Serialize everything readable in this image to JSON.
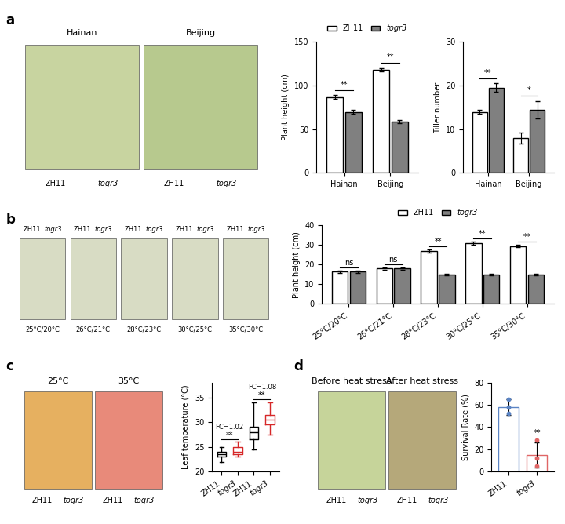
{
  "panel_labels": [
    "a",
    "b",
    "c",
    "d"
  ],
  "photos": {
    "a": [
      {
        "title": "Hainan",
        "labels": [
          "ZH11",
          "togr3"
        ]
      },
      {
        "title": "Beijing",
        "labels": [
          "ZH11",
          "togr3"
        ]
      }
    ],
    "b": [
      {
        "caption": "25°C/20°C",
        "labels": [
          "ZH11",
          "togr3"
        ]
      },
      {
        "caption": "26°C/21°C",
        "labels": [
          "ZH11",
          "togr3"
        ]
      },
      {
        "caption": "28°C/23°C",
        "labels": [
          "ZH11",
          "togr3"
        ]
      },
      {
        "caption": "30°C/25°C",
        "labels": [
          "ZH11",
          "togr3"
        ]
      },
      {
        "caption": "35°C/30°C",
        "labels": [
          "ZH11",
          "togr3"
        ]
      }
    ],
    "c": [
      {
        "title": "25°C",
        "labels": [
          "ZH11",
          "togr3"
        ]
      },
      {
        "title": "35°C",
        "labels": [
          "ZH11",
          "togr3"
        ]
      }
    ],
    "d": [
      {
        "title": "Before heat stress",
        "labels": [
          "ZH11",
          "togr3"
        ]
      },
      {
        "title": "After heat stress",
        "labels": [
          "ZH11",
          "togr3"
        ]
      }
    ]
  },
  "chart_data": [
    {
      "type": "bar",
      "y_label": "Plant height (cm)",
      "categories": [
        "Hainan",
        "Beijing"
      ],
      "series": [
        {
          "name": "ZH11",
          "color": "#ffffff",
          "values": [
            87,
            118
          ],
          "errors": [
            2,
            2
          ]
        },
        {
          "name": "togr3",
          "color": "#808080",
          "values": [
            70,
            59
          ],
          "errors": [
            2,
            2
          ]
        }
      ],
      "significance": [
        "**",
        "**"
      ],
      "ylim": [
        0,
        150
      ],
      "yticks": [
        0,
        50,
        100,
        150
      ],
      "legend": "lower center"
    },
    {
      "type": "bar",
      "y_label": "Tiller number",
      "categories": [
        "Hainan",
        "Beijing"
      ],
      "series": [
        {
          "name": "ZH11",
          "color": "#ffffff",
          "values": [
            14,
            8
          ],
          "errors": [
            0.5,
            1.2
          ]
        },
        {
          "name": "togr3",
          "color": "#808080",
          "values": [
            19.5,
            14.5
          ],
          "errors": [
            1,
            2
          ]
        }
      ],
      "significance": [
        "**",
        "*"
      ],
      "ylim": [
        0,
        30
      ],
      "yticks": [
        0,
        10,
        20,
        30
      ]
    },
    {
      "type": "bar",
      "y_label": "Plant height (cm)",
      "categories": [
        "25°C/20°C",
        "26°C/21°C",
        "28°C/23°C",
        "30°C/25°C",
        "35°C/30°C"
      ],
      "series": [
        {
          "name": "ZH11",
          "color": "#ffffff",
          "values": [
            16.5,
            18,
            27,
            31,
            29.5
          ],
          "errors": [
            0.6,
            0.6,
            0.8,
            0.8,
            0.6
          ]
        },
        {
          "name": "togr3",
          "color": "#808080",
          "values": [
            16.5,
            18,
            15,
            15,
            15
          ],
          "errors": [
            0.6,
            0.6,
            0.5,
            0.5,
            0.5
          ]
        }
      ],
      "significance": [
        "ns",
        "ns",
        "**",
        "**",
        "**"
      ],
      "ylim": [
        0,
        40
      ],
      "yticks": [
        0,
        10,
        20,
        30,
        40
      ],
      "legend": "lower center"
    },
    {
      "type": "box",
      "y_label": "Leaf temperature (°C)",
      "categories": [
        "ZH11",
        "togr3",
        "ZH11",
        "togr3"
      ],
      "colors": [
        "#000000",
        "#d62728",
        "#000000",
        "#d62728"
      ],
      "boxes": [
        {
          "whislo": 22,
          "q1": 23,
          "med": 23.5,
          "q3": 24,
          "whishi": 25
        },
        {
          "whislo": 23,
          "q1": 23.5,
          "med": 24,
          "q3": 25,
          "whishi": 26
        },
        {
          "whislo": 24.5,
          "q1": 26.5,
          "med": 28,
          "q3": 29,
          "whishi": 34
        },
        {
          "whislo": 27.5,
          "q1": 29.5,
          "med": 30.5,
          "q3": 31.5,
          "whishi": 34
        }
      ],
      "significance": [
        "**",
        "**"
      ],
      "fold_change_labels": [
        "FC=1.02",
        "FC=1.08"
      ],
      "ylim": [
        20,
        38
      ],
      "yticks": [
        20,
        25,
        30,
        35
      ]
    },
    {
      "type": "bar",
      "y_label": "Survival Rate (%)",
      "categories": [
        "ZH11",
        "togr3"
      ],
      "series": [
        {
          "name": "Survival Rate",
          "colors": [
            "#5b84c4",
            "#e06666"
          ],
          "values": [
            58,
            15
          ],
          "errors": [
            7,
            11
          ],
          "points": [
            [
              52,
              58,
              65
            ],
            [
              5,
              12,
              28
            ]
          ]
        }
      ],
      "significance": [
        null,
        "**"
      ],
      "ylim": [
        0,
        80
      ],
      "yticks": [
        0,
        20,
        40,
        60,
        80
      ]
    }
  ]
}
